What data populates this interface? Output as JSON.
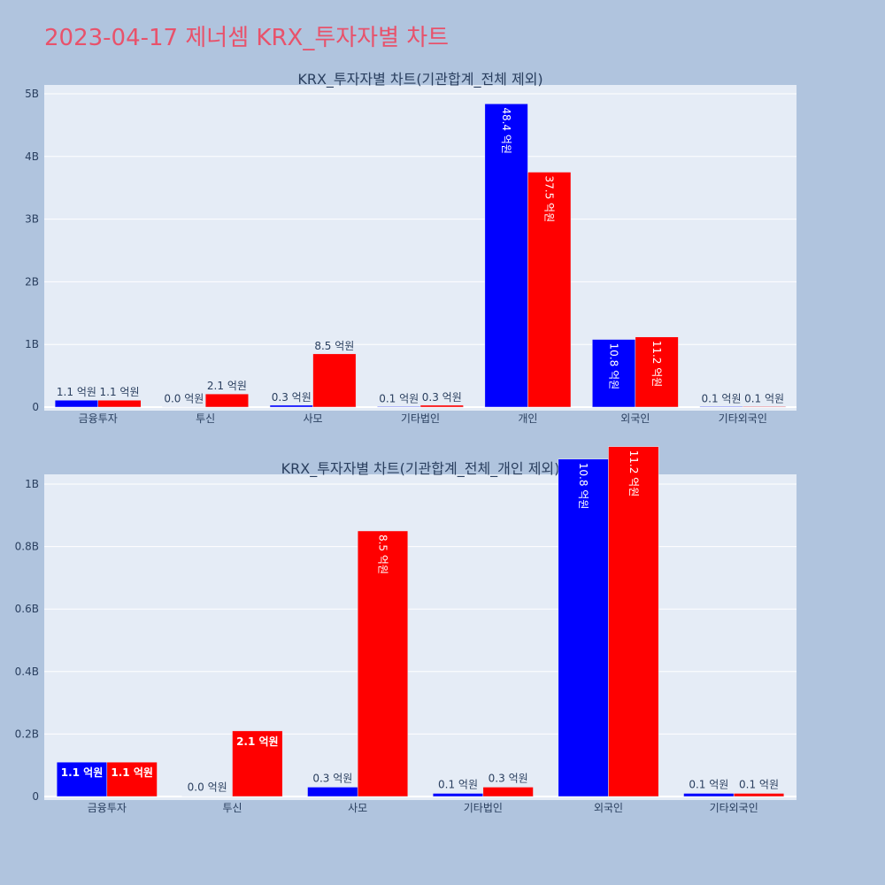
{
  "page_title": "2023-04-17 제너셈 KRX_투자자별 차트",
  "colors": {
    "background": "#b0c4de",
    "plot_background": "#e5ecf6",
    "series_a": "#0000ff",
    "series_b": "#ff0000",
    "title_color": "#e8526b"
  },
  "chart_data": [
    {
      "type": "bar",
      "title": "KRX_투자자별 차트(기관합계_전체 제외)",
      "categories": [
        "금융투자",
        "투신",
        "사모",
        "기타법인",
        "개인",
        "외국인",
        "기타외국인"
      ],
      "series": [
        {
          "color": "#0000ff",
          "values": [
            110000000,
            0,
            30000000,
            10000000,
            4840000000,
            1080000000,
            10000000
          ],
          "labels": [
            "1.1 억원",
            "0.0 억원",
            "0.3 억원",
            "0.1 억원",
            "48.4 억원",
            "10.8 억원",
            "0.1 억원"
          ]
        },
        {
          "color": "#ff0000",
          "values": [
            110000000,
            210000000,
            850000000,
            30000000,
            3750000000,
            1120000000,
            10000000
          ],
          "labels": [
            "1.1 억원",
            "2.1 억원",
            "8.5 억원",
            "0.3 억원",
            "37.5 억원",
            "11.2 억원",
            "0.1 억원"
          ]
        }
      ],
      "ylim": [
        0,
        5150000000
      ],
      "yticks": [
        0,
        1000000000,
        2000000000,
        3000000000,
        4000000000,
        5000000000
      ],
      "ytick_labels": [
        "0",
        "1B",
        "2B",
        "3B",
        "4B",
        "5B"
      ],
      "grid": true,
      "inside_label_orientation": "rotated"
    },
    {
      "type": "bar",
      "title": "KRX_투자자별 차트(기관합계_전체_개인 제외)",
      "categories": [
        "금융투자",
        "투신",
        "사모",
        "기타법인",
        "외국인",
        "기타외국인"
      ],
      "series": [
        {
          "color": "#0000ff",
          "values": [
            110000000,
            0,
            30000000,
            10000000,
            1080000000,
            10000000
          ],
          "labels": [
            "1.1 억원",
            "0.0 억원",
            "0.3 억원",
            "0.1 억원",
            "10.8 억원",
            "0.1 억원"
          ]
        },
        {
          "color": "#ff0000",
          "values": [
            110000000,
            210000000,
            850000000,
            30000000,
            1120000000,
            10000000
          ],
          "labels": [
            "1.1 억원",
            "2.1 억원",
            "8.5 억원",
            "0.3 억원",
            "11.2 억원",
            "0.1 억원"
          ]
        }
      ],
      "ylim": [
        0,
        1180000000
      ],
      "yticks": [
        0,
        200000000,
        400000000,
        600000000,
        800000000,
        1000000000
      ],
      "ytick_labels": [
        "0",
        "0.2B",
        "0.4B",
        "0.6B",
        "0.8B",
        "1B"
      ],
      "grid": true,
      "inside_label_orientation": "mixed"
    }
  ]
}
